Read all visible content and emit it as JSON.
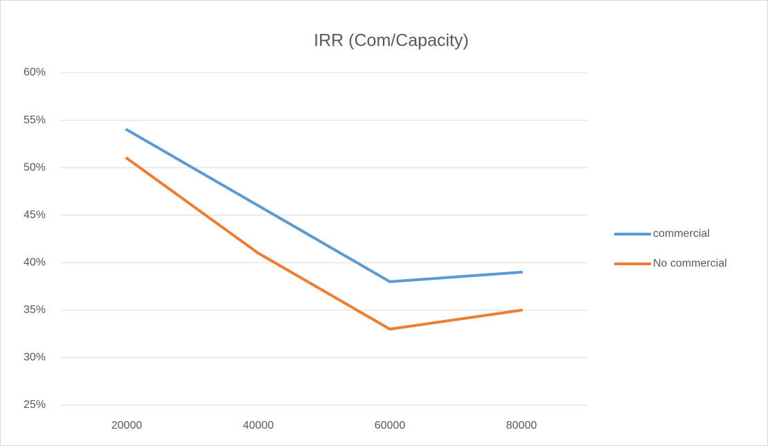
{
  "chart_data": {
    "type": "line",
    "title": "IRR (Com/Capacity)",
    "categories": [
      "20000",
      "40000",
      "60000",
      "80000"
    ],
    "series": [
      {
        "name": "commercial",
        "color": "#5b9bd5",
        "values": [
          54,
          46,
          38,
          39
        ]
      },
      {
        "name": "No commercial",
        "color": "#ed7d31",
        "values": [
          51,
          41,
          33,
          35
        ]
      }
    ],
    "ylim": [
      25,
      60
    ],
    "yticks": [
      {
        "value": 25,
        "label": "25%"
      },
      {
        "value": 30,
        "label": "30%"
      },
      {
        "value": 35,
        "label": "35%"
      },
      {
        "value": 40,
        "label": "40%"
      },
      {
        "value": 45,
        "label": "45%"
      },
      {
        "value": 50,
        "label": "50%"
      },
      {
        "value": 55,
        "label": "55%"
      },
      {
        "value": 60,
        "label": "60%"
      }
    ],
    "grid": true,
    "legend": "right"
  }
}
